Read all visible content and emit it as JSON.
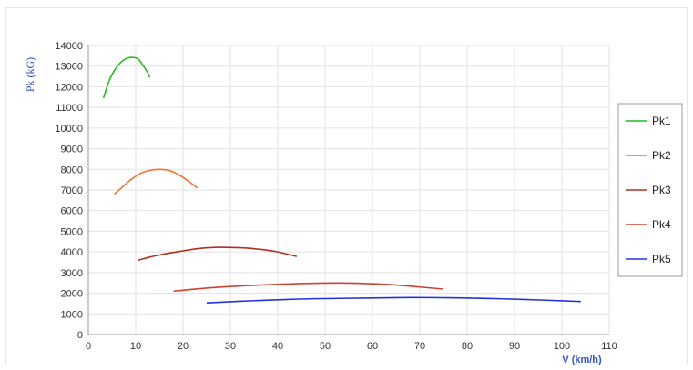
{
  "chart_data": {
    "type": "line",
    "xlabel": "V (km/h)",
    "ylabel": "Pk (kG)",
    "xlim": [
      0,
      110
    ],
    "ylim": [
      0,
      14000
    ],
    "xticks": [
      0,
      10,
      20,
      30,
      40,
      50,
      60,
      70,
      80,
      90,
      100,
      110
    ],
    "yticks": [
      0,
      1000,
      2000,
      3000,
      4000,
      5000,
      6000,
      7000,
      8000,
      9000,
      10000,
      11000,
      12000,
      13000,
      14000
    ],
    "grid": true,
    "legend_position": "right",
    "series": [
      {
        "name": "Pk1",
        "color": "#22bb22",
        "x": [
          3.2,
          4.5,
          6,
          7.5,
          9,
          10.5,
          11.5,
          12.5,
          13
        ],
        "y": [
          11450,
          12350,
          12950,
          13300,
          13420,
          13350,
          13050,
          12700,
          12450
        ]
      },
      {
        "name": "Pk2",
        "color": "#f07030",
        "x": [
          5.5,
          7,
          9,
          11,
          13,
          15,
          17,
          19,
          21,
          23
        ],
        "y": [
          6800,
          7100,
          7500,
          7800,
          7950,
          8000,
          7950,
          7750,
          7450,
          7100
        ]
      },
      {
        "name": "Pk3",
        "color": "#b03020",
        "x": [
          10.5,
          13,
          16,
          20,
          24,
          28,
          32,
          36,
          40,
          44
        ],
        "y": [
          3600,
          3750,
          3900,
          4050,
          4180,
          4220,
          4200,
          4130,
          4000,
          3780
        ]
      },
      {
        "name": "Pk4",
        "color": "#d04030",
        "x": [
          18,
          25,
          32,
          40,
          47,
          55,
          62,
          68,
          75
        ],
        "y": [
          2100,
          2250,
          2350,
          2430,
          2480,
          2490,
          2440,
          2340,
          2200
        ]
      },
      {
        "name": "Pk5",
        "color": "#2233dd",
        "x": [
          25,
          33,
          42,
          50,
          60,
          68,
          76,
          84,
          92,
          98,
          104
        ],
        "y": [
          1530,
          1620,
          1700,
          1740,
          1770,
          1790,
          1780,
          1750,
          1700,
          1650,
          1600
        ]
      }
    ]
  }
}
